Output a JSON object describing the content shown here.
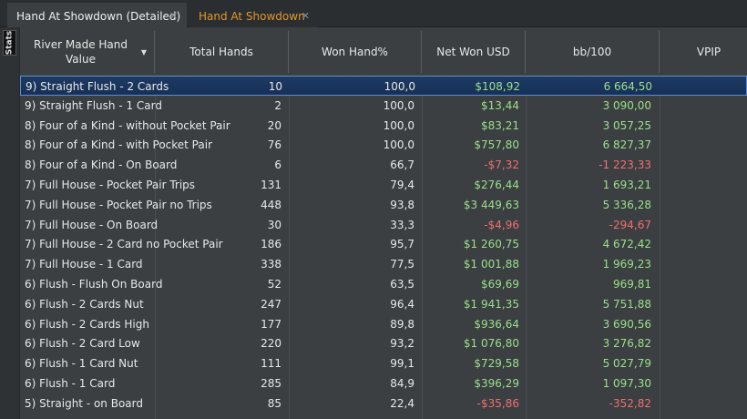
{
  "tabs": [
    {
      "label": "Hand At Showdown (Detailed)",
      "active": true
    },
    {
      "label": "Hand At Showdown",
      "active": false
    }
  ],
  "sidebar": {
    "label": "Stats"
  },
  "columns": [
    "River Made Hand Value",
    "Total Hands",
    "Won Hand%",
    "Net Won USD",
    "bb/100",
    "VPIP"
  ],
  "colors": {
    "positive": "#9be08a",
    "negative": "#f06f6f",
    "tab_inactive": "#e3962a"
  },
  "rows": [
    {
      "name": "9) Straight Flush - 2 Cards",
      "total": "10",
      "won": "100,0",
      "net": "$108,92",
      "bb": "6 664,50",
      "sign": "pos",
      "selected": true
    },
    {
      "name": "9) Straight Flush - 1 Card",
      "total": "2",
      "won": "100,0",
      "net": "$13,44",
      "bb": "3 090,00",
      "sign": "pos"
    },
    {
      "name": "8) Four of a Kind - without Pocket Pair",
      "total": "20",
      "won": "100,0",
      "net": "$83,21",
      "bb": "3 057,25",
      "sign": "pos"
    },
    {
      "name": "8) Four of a Kind - with Pocket Pair",
      "total": "76",
      "won": "100,0",
      "net": "$757,80",
      "bb": "6 827,37",
      "sign": "pos"
    },
    {
      "name": "8) Four of a Kind - On Board",
      "total": "6",
      "won": "66,7",
      "net": "-$7,32",
      "bb": "-1 223,33",
      "sign": "neg"
    },
    {
      "name": "7) Full House - Pocket Pair Trips",
      "total": "131",
      "won": "79,4",
      "net": "$276,44",
      "bb": "1 693,21",
      "sign": "pos"
    },
    {
      "name": "7) Full House - Pocket Pair no Trips",
      "total": "448",
      "won": "93,8",
      "net": "$3 449,63",
      "bb": "5 336,28",
      "sign": "pos"
    },
    {
      "name": "7) Full House - On Board",
      "total": "30",
      "won": "33,3",
      "net": "-$4,96",
      "bb": "-294,67",
      "sign": "neg"
    },
    {
      "name": "7) Full House - 2 Card no Pocket Pair",
      "total": "186",
      "won": "95,7",
      "net": "$1 260,75",
      "bb": "4 672,42",
      "sign": "pos"
    },
    {
      "name": "7) Full House - 1 Card",
      "total": "338",
      "won": "77,5",
      "net": "$1 001,88",
      "bb": "1 969,23",
      "sign": "pos"
    },
    {
      "name": "6) Flush - Flush On Board",
      "total": "52",
      "won": "63,5",
      "net": "$69,69",
      "bb": "969,81",
      "sign": "pos"
    },
    {
      "name": "6) Flush - 2 Cards Nut",
      "total": "247",
      "won": "96,4",
      "net": "$1 941,35",
      "bb": "5 751,88",
      "sign": "pos"
    },
    {
      "name": "6) Flush - 2 Cards High",
      "total": "177",
      "won": "89,8",
      "net": "$936,64",
      "bb": "3 690,56",
      "sign": "pos"
    },
    {
      "name": "6) Flush - 2 Card Low",
      "total": "220",
      "won": "93,2",
      "net": "$1 076,80",
      "bb": "3 276,82",
      "sign": "pos"
    },
    {
      "name": "6) Flush - 1 Card Nut",
      "total": "111",
      "won": "99,1",
      "net": "$729,58",
      "bb": "5 027,79",
      "sign": "pos"
    },
    {
      "name": "6) Flush - 1 Card",
      "total": "285",
      "won": "84,9",
      "net": "$396,29",
      "bb": "1 097,30",
      "sign": "pos"
    },
    {
      "name": "5) Straight - on Board",
      "total": "85",
      "won": "22,4",
      "net": "-$35,86",
      "bb": "-352,82",
      "sign": "neg"
    }
  ]
}
